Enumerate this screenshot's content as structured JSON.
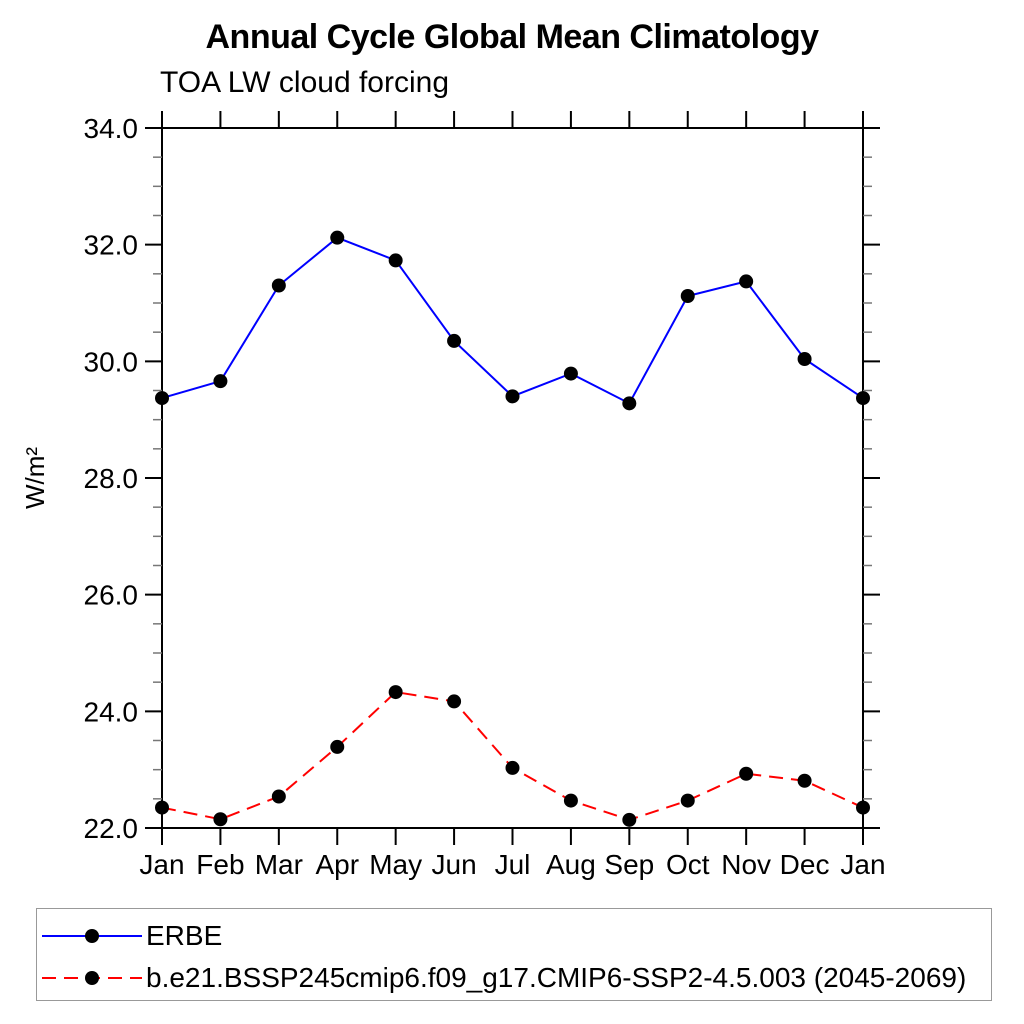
{
  "page": {
    "background_color": "#ffffff",
    "axis_color": "#000000",
    "minor_tick_color": "#777777",
    "marker_color": "#000000"
  },
  "chart_data": {
    "type": "line",
    "title": "Annual Cycle Global Mean Climatology",
    "subtitle": "TOA LW cloud forcing",
    "xlabel": "",
    "ylabel": "W/m²",
    "categories": [
      "Jan",
      "Feb",
      "Mar",
      "Apr",
      "May",
      "Jun",
      "Jul",
      "Aug",
      "Sep",
      "Oct",
      "Nov",
      "Dec",
      "Jan"
    ],
    "ylim": [
      22.0,
      34.0
    ],
    "ytick_interval": 2.0,
    "ytick_minor_interval": 0.5,
    "ytick_labels": [
      "22.0",
      "24.0",
      "26.0",
      "28.0",
      "30.0",
      "32.0",
      "34.0"
    ],
    "grid": false,
    "legend_position": "bottom-left-box",
    "series": [
      {
        "name": "ERBE",
        "color": "#0000ff",
        "line_style": "solid",
        "marker": "filled-circle",
        "marker_color": "#000000",
        "values": [
          29.37,
          29.66,
          31.3,
          32.12,
          31.73,
          30.35,
          29.4,
          29.79,
          29.28,
          31.12,
          31.37,
          30.04,
          29.37
        ]
      },
      {
        "name": "b.e21.BSSP245cmip6.f09_g17.CMIP6-SSP2-4.5.003 (2045-2069)",
        "color": "#ff0000",
        "line_style": "dashed",
        "marker": "filled-circle",
        "marker_color": "#000000",
        "values": [
          22.35,
          22.15,
          22.54,
          23.39,
          24.33,
          24.17,
          23.03,
          22.47,
          22.14,
          22.47,
          22.93,
          22.81,
          22.35
        ]
      }
    ]
  }
}
